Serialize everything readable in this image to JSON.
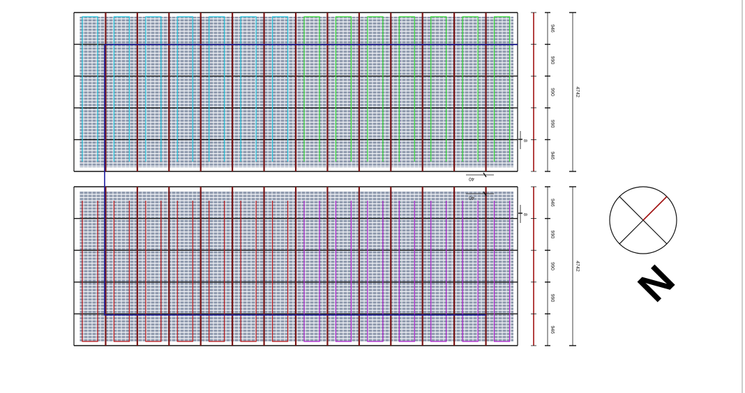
{
  "arrays": [
    {
      "row_dimensions": [
        946,
        990,
        990,
        990,
        946
      ],
      "total_dimension": 4742,
      "gap_dimension": 8,
      "offset_dimension": 40
    },
    {
      "row_dimensions": [
        946,
        990,
        990,
        990,
        946
      ],
      "total_dimension": 4742,
      "gap_dimension": 8,
      "offset_dimension": 40
    }
  ],
  "compass": {
    "north_label": "N"
  }
}
